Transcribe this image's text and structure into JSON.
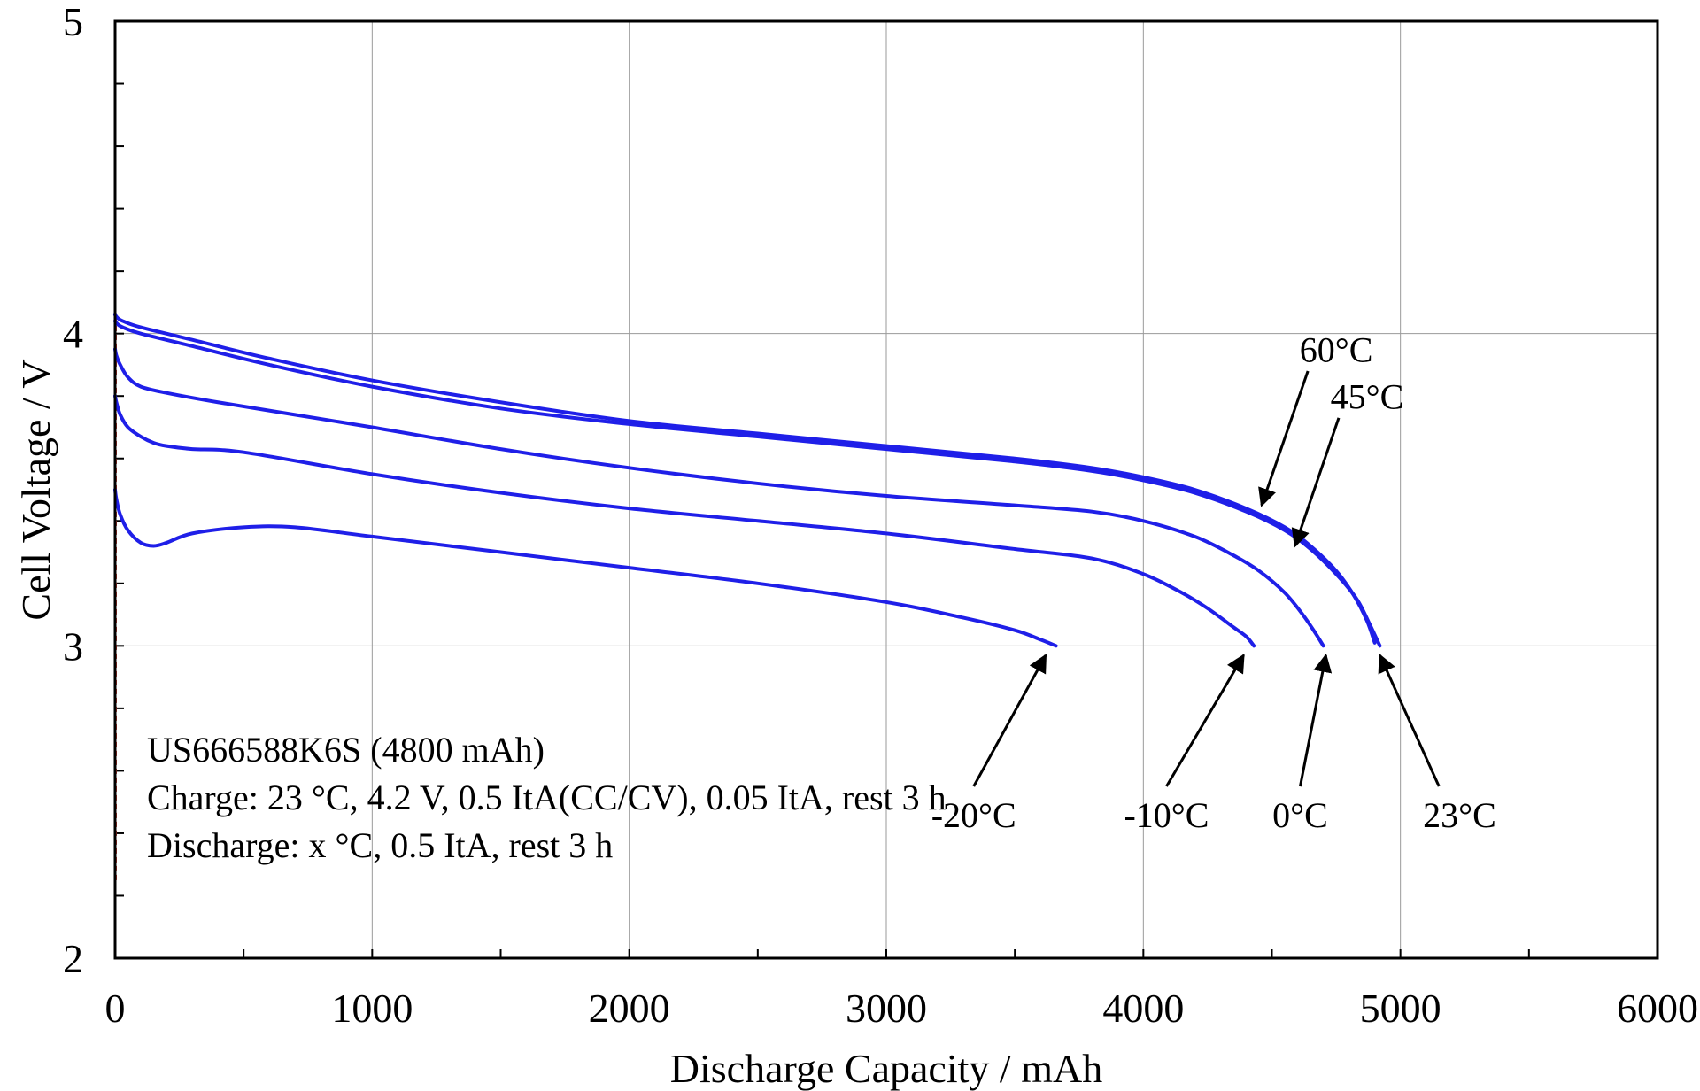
{
  "chart_data": {
    "type": "line",
    "xlabel": "Discharge Capacity / mAh",
    "ylabel": "Cell Voltage / V",
    "xlim": [
      0,
      6000
    ],
    "ylim": [
      2,
      5
    ],
    "xticks": [
      0,
      1000,
      2000,
      3000,
      4000,
      5000,
      6000
    ],
    "yticks": [
      2,
      3,
      4,
      5
    ],
    "grid": true,
    "line_color": "#1f1fe8",
    "annotations": [
      "US666588K6S (4800 mAh)",
      "Charge: 23 °C, 4.2 V, 0.5 ItA(CC/CV), 0.05 ItA, rest 3 h",
      "Discharge: x °C, 0.5 ItA, rest 3 h"
    ],
    "series": [
      {
        "name": "60°C",
        "x": [
          0,
          10,
          30,
          100,
          300,
          600,
          1000,
          1500,
          2000,
          2500,
          3000,
          3500,
          3800,
          4000,
          4200,
          4400,
          4550,
          4650,
          4750,
          4820,
          4870,
          4900
        ],
        "y": [
          4.06,
          4.05,
          4.04,
          4.02,
          3.98,
          3.92,
          3.85,
          3.78,
          3.72,
          3.68,
          3.64,
          3.6,
          3.57,
          3.54,
          3.5,
          3.44,
          3.38,
          3.32,
          3.24,
          3.16,
          3.08,
          3.01
        ]
      },
      {
        "name": "45°C",
        "x": [
          0,
          10,
          30,
          100,
          300,
          600,
          1000,
          1500,
          2000,
          2500,
          3000,
          3500,
          3800,
          4000,
          4200,
          4400,
          4550,
          4650,
          4750,
          4830,
          4880,
          4920
        ],
        "y": [
          4.04,
          4.03,
          4.02,
          4.0,
          3.96,
          3.9,
          3.83,
          3.76,
          3.71,
          3.67,
          3.63,
          3.59,
          3.56,
          3.53,
          3.49,
          3.43,
          3.37,
          3.31,
          3.23,
          3.15,
          3.07,
          3.0
        ]
      },
      {
        "name": "23°C",
        "x": [
          0,
          5,
          20,
          50,
          100,
          200,
          400,
          700,
          1000,
          1500,
          2000,
          2500,
          3000,
          3500,
          3800,
          4000,
          4200,
          4350,
          4450,
          4550,
          4620,
          4670,
          4700
        ],
        "y": [
          3.95,
          3.93,
          3.9,
          3.86,
          3.83,
          3.81,
          3.78,
          3.74,
          3.7,
          3.63,
          3.57,
          3.52,
          3.48,
          3.45,
          3.43,
          3.4,
          3.35,
          3.29,
          3.24,
          3.17,
          3.1,
          3.04,
          3.0
        ]
      },
      {
        "name": "0°C",
        "x": [
          0,
          5,
          20,
          50,
          100,
          150,
          200,
          300,
          500,
          1000,
          1500,
          2000,
          2500,
          3000,
          3500,
          3800,
          4000,
          4150,
          4250,
          4350,
          4400,
          4430
        ],
        "y": [
          3.8,
          3.78,
          3.74,
          3.7,
          3.67,
          3.65,
          3.64,
          3.63,
          3.62,
          3.55,
          3.49,
          3.44,
          3.4,
          3.36,
          3.31,
          3.28,
          3.23,
          3.17,
          3.12,
          3.06,
          3.03,
          3.0
        ]
      },
      {
        "name": "-10°C",
        "x": [
          0,
          5,
          20,
          50,
          100,
          150,
          200,
          300,
          500,
          700,
          1000,
          1500,
          2000,
          2500,
          3000,
          3300,
          3500,
          3600,
          3660
        ],
        "y": [
          3.5,
          3.47,
          3.42,
          3.37,
          3.33,
          3.32,
          3.33,
          3.36,
          3.38,
          3.38,
          3.35,
          3.3,
          3.25,
          3.2,
          3.14,
          3.09,
          3.05,
          3.02,
          3.0
        ]
      }
    ],
    "temp_labels": [
      {
        "text": "60°C",
        "tx": 4750,
        "ty": 3.91,
        "ax0": 4640,
        "ay0": 3.88,
        "ax1": 4460,
        "ay1": 3.45
      },
      {
        "text": "45°C",
        "tx": 4870,
        "ty": 3.76,
        "ax0": 4760,
        "ay0": 3.73,
        "ax1": 4590,
        "ay1": 3.32
      },
      {
        "text": "-20°C",
        "tx": 3340,
        "ty": 2.42,
        "ax0": 3340,
        "ay0": 2.55,
        "ax1": 3620,
        "ay1": 2.97
      },
      {
        "text": "-10°C",
        "tx": 4090,
        "ty": 2.42,
        "ax0": 4090,
        "ay0": 2.55,
        "ax1": 4390,
        "ay1": 2.97
      },
      {
        "text": "0°C",
        "tx": 4610,
        "ty": 2.42,
        "ax0": 4610,
        "ay0": 2.55,
        "ax1": 4710,
        "ay1": 2.97
      },
      {
        "text": "23°C",
        "tx": 5230,
        "ty": 2.42,
        "ax0": 5150,
        "ay0": 2.55,
        "ax1": 4920,
        "ay1": 2.97
      }
    ]
  }
}
